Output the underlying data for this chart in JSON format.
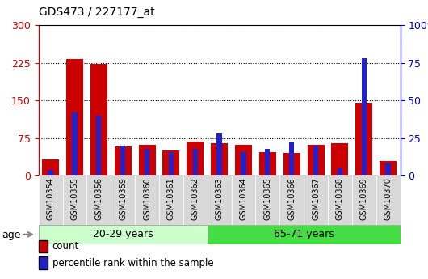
{
  "title": "GDS473 / 227177_at",
  "samples": [
    "GSM10354",
    "GSM10355",
    "GSM10356",
    "GSM10359",
    "GSM10360",
    "GSM10361",
    "GSM10362",
    "GSM10363",
    "GSM10364",
    "GSM10365",
    "GSM10366",
    "GSM10367",
    "GSM10368",
    "GSM10369",
    "GSM10370"
  ],
  "count_values": [
    32,
    232,
    222,
    58,
    62,
    50,
    68,
    65,
    62,
    48,
    45,
    62,
    65,
    145,
    30
  ],
  "percentile_values": [
    4,
    42,
    40,
    20,
    18,
    16,
    18,
    28,
    16,
    18,
    22,
    20,
    5,
    78,
    8
  ],
  "group1_label": "20-29 years",
  "group2_label": "65-71 years",
  "group1_count": 7,
  "group2_count": 8,
  "left_yticks": [
    0,
    75,
    150,
    225,
    300
  ],
  "right_yticks": [
    0,
    25,
    50,
    75,
    100
  ],
  "bar_color_red": "#cc0000",
  "bar_color_blue": "#2222cc",
  "group1_bg": "#ccffcc",
  "group2_bg": "#44dd44",
  "left_axis_color": "#cc0000",
  "right_axis_color": "#0000bb",
  "xtick_bg": "#d8d8d8",
  "legend_count_label": "count",
  "legend_pct_label": "percentile rank within the sample"
}
